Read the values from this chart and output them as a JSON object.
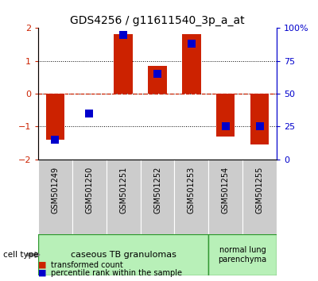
{
  "title": "GDS4256 / g11611540_3p_a_at",
  "samples": [
    "GSM501249",
    "GSM501250",
    "GSM501251",
    "GSM501252",
    "GSM501253",
    "GSM501254",
    "GSM501255"
  ],
  "red_bars": [
    -1.4,
    0.0,
    1.82,
    0.85,
    1.82,
    -1.3,
    -1.55
  ],
  "blue_dots": [
    0.15,
    0.35,
    0.95,
    0.65,
    0.88,
    0.25,
    0.25
  ],
  "ylim": [
    -2,
    2
  ],
  "right_yticks": [
    0,
    0.25,
    0.5,
    0.75,
    1.0
  ],
  "right_yticklabels": [
    "0",
    "25",
    "50",
    "75",
    "100%"
  ],
  "left_yticks": [
    -2,
    -1,
    0,
    1,
    2
  ],
  "bar_color": "#cc2200",
  "dot_color": "#0000cc",
  "bar_width": 0.55,
  "dot_size": 55,
  "left_tick_color": "#cc2200",
  "right_tick_color": "#0000cc",
  "bg_color": "#ffffff",
  "legend_red_label": "transformed count",
  "legend_blue_label": "percentile rank within the sample",
  "cell_type_label": "cell type",
  "xticklabel_bg": "#cccccc",
  "group1_label": "caseous TB granulomas",
  "group2_label": "normal lung\nparenchyma",
  "group_color": "#b8f0b8",
  "group_edge_color": "#339933",
  "n_group1": 5,
  "n_group2": 2
}
